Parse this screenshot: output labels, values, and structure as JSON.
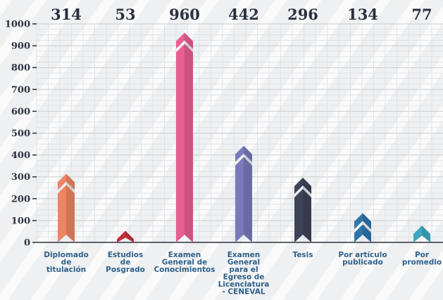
{
  "chart_data": {
    "type": "bar",
    "categories": [
      "Diplomado de titulación",
      "Estudios de Posgrado",
      "Examen General de Conocimientos",
      "Examen General para el Egreso de Licenciatura - CENEVAL",
      "Tesis",
      "Por artículo publicado",
      "Por promedio"
    ],
    "category_lines": [
      [
        "Diplomado",
        "de",
        "titulación"
      ],
      [
        "Estudios",
        "de",
        "Posgrado"
      ],
      [
        "Examen",
        "General de",
        "Conocimientos"
      ],
      [
        "Examen",
        "General",
        "para el",
        "Egreso de",
        "Licenciatura",
        "- CENEVAL"
      ],
      [
        "Tesis"
      ],
      [
        "Por artículo",
        "publicado"
      ],
      [
        "Por",
        "promedio"
      ]
    ],
    "values": [
      314,
      53,
      960,
      442,
      296,
      134,
      77
    ],
    "value_labels": [
      "314",
      "53",
      "960",
      "442",
      "296",
      "134",
      "77"
    ],
    "colors": [
      "#ef8462",
      "#c1303a",
      "#e75f8f",
      "#7a7abb",
      "#3d4457",
      "#2e75ac",
      "#3fa7c2"
    ],
    "yticks": [
      0,
      100,
      200,
      300,
      400,
      500,
      600,
      700,
      800,
      900,
      1000
    ],
    "ylim": [
      0,
      1000
    ],
    "grid": true,
    "title": "",
    "xlabel": "",
    "ylabel": ""
  }
}
